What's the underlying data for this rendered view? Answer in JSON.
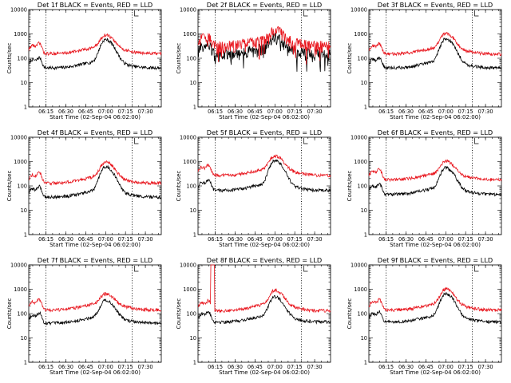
{
  "chart_data": [
    {
      "type": "line",
      "title": "Det 1f BLACK = Events, RED = LLD",
      "xlabel": "Start Time (02-Sep-04 06:02:00)",
      "ylabel": "Counts/sec",
      "yscale": "log",
      "ylim": [
        1,
        10000
      ],
      "x_ticks": [
        "06:15",
        "06:30",
        "06:45",
        "07:00",
        "07:15",
        "07:30"
      ],
      "y_ticks": [
        "1",
        "10",
        "100",
        "1000",
        "10000"
      ],
      "marker_lines": [
        "06:15",
        "07:20"
      ],
      "series": [
        {
          "color": "#000000",
          "profile": "normal",
          "base": 40,
          "peak": 550
        },
        {
          "color": "#e8141c",
          "profile": "normal",
          "base": 155,
          "peak": 760
        }
      ]
    },
    {
      "type": "line",
      "title": "Det 2f BLACK = Events, RED = LLD",
      "xlabel": "Start Time (02-Sep-04 06:02:00)",
      "ylabel": "Counts/sec",
      "yscale": "log",
      "ylim": [
        1,
        10000
      ],
      "x_ticks": [
        "06:15",
        "06:30",
        "06:45",
        "07:00",
        "07:15",
        "07:30"
      ],
      "y_ticks": [
        "1",
        "10",
        "100",
        "1000",
        "10000"
      ],
      "marker_lines": [
        "06:15",
        "07:20"
      ],
      "series": [
        {
          "color": "#000000",
          "profile": "noisy",
          "base": 150,
          "peak": 600
        },
        {
          "color": "#e8141c",
          "profile": "noisy",
          "base": 330,
          "peak": 1150
        }
      ]
    },
    {
      "type": "line",
      "title": "Det 3f BLACK = Events, RED = LLD",
      "xlabel": "Start Time (02-Sep-04 06:02:00)",
      "ylabel": "Counts/sec",
      "yscale": "log",
      "ylim": [
        1,
        10000
      ],
      "x_ticks": [
        "06:15",
        "06:30",
        "06:45",
        "07:00",
        "07:15",
        "07:30"
      ],
      "y_ticks": [
        "1",
        "10",
        "100",
        "1000",
        "10000"
      ],
      "marker_lines": [
        "06:15",
        "07:20"
      ],
      "series": [
        {
          "color": "#000000",
          "profile": "normal",
          "base": 40,
          "peak": 600
        },
        {
          "color": "#e8141c",
          "profile": "normal",
          "base": 150,
          "peak": 950
        }
      ]
    },
    {
      "type": "line",
      "title": "Det 4f BLACK = Events, RED = LLD",
      "xlabel": "Start Time (02-Sep-04 06:02:00)",
      "ylabel": "Counts/sec",
      "yscale": "log",
      "ylim": [
        1,
        10000
      ],
      "x_ticks": [
        "06:15",
        "06:30",
        "06:45",
        "07:00",
        "07:15",
        "07:30"
      ],
      "y_ticks": [
        "1",
        "10",
        "100",
        "1000",
        "10000"
      ],
      "marker_lines": [
        "06:15",
        "07:20"
      ],
      "series": [
        {
          "color": "#000000",
          "profile": "normal",
          "base": 35,
          "peak": 580
        },
        {
          "color": "#e8141c",
          "profile": "normal",
          "base": 130,
          "peak": 850
        }
      ]
    },
    {
      "type": "line",
      "title": "Det 5f BLACK = Events, RED = LLD",
      "xlabel": "Start Time (02-Sep-04 06:02:00)",
      "ylabel": "Counts/sec",
      "yscale": "log",
      "ylim": [
        1,
        10000
      ],
      "x_ticks": [
        "06:15",
        "06:30",
        "06:45",
        "07:00",
        "07:15",
        "07:30"
      ],
      "y_ticks": [
        "1",
        "10",
        "100",
        "1000",
        "10000"
      ],
      "marker_lines": [
        "06:15",
        "07:20"
      ],
      "series": [
        {
          "color": "#000000",
          "profile": "normal",
          "base": 65,
          "peak": 1050
        },
        {
          "color": "#e8141c",
          "profile": "normal",
          "base": 270,
          "peak": 1500
        }
      ]
    },
    {
      "type": "line",
      "title": "Det 6f BLACK = Events, RED = LLD",
      "xlabel": "Start Time (02-Sep-04 06:02:00)",
      "ylabel": "Counts/sec",
      "yscale": "log",
      "ylim": [
        1,
        10000
      ],
      "x_ticks": [
        "06:15",
        "06:30",
        "06:45",
        "07:00",
        "07:15",
        "07:30"
      ],
      "y_ticks": [
        "1",
        "10",
        "100",
        "1000",
        "10000"
      ],
      "marker_lines": [
        "06:15",
        "07:20"
      ],
      "series": [
        {
          "color": "#000000",
          "profile": "normal",
          "base": 45,
          "peak": 520
        },
        {
          "color": "#e8141c",
          "profile": "normal",
          "base": 180,
          "peak": 900
        }
      ]
    },
    {
      "type": "line",
      "title": "Det 7f BLACK = Events, RED = LLD",
      "xlabel": "Start Time (02-Sep-04 06:02:00)",
      "ylabel": "Counts/sec",
      "yscale": "log",
      "ylim": [
        1,
        10000
      ],
      "x_ticks": [
        "06:15",
        "06:30",
        "06:45",
        "07:00",
        "07:15",
        "07:30"
      ],
      "y_ticks": [
        "1",
        "10",
        "100",
        "1000",
        "10000"
      ],
      "marker_lines": [
        "06:15",
        "07:20"
      ],
      "series": [
        {
          "color": "#000000",
          "profile": "normal",
          "base": 40,
          "peak": 320
        },
        {
          "color": "#e8141c",
          "profile": "normal",
          "base": 140,
          "peak": 520
        }
      ]
    },
    {
      "type": "line",
      "title": "Det 8f BLACK = Events, RED = LLD",
      "xlabel": "Start Time (02-Sep-04 06:02:00)",
      "ylabel": "Counts/sec",
      "yscale": "log",
      "ylim": [
        1,
        10000
      ],
      "x_ticks": [
        "06:15",
        "06:30",
        "06:45",
        "07:00",
        "07:15",
        "07:30"
      ],
      "y_ticks": [
        "1",
        "10",
        "100",
        "1000",
        "10000"
      ],
      "marker_lines": [
        "06:15",
        "07:20"
      ],
      "series": [
        {
          "color": "#000000",
          "profile": "normal",
          "base": 45,
          "peak": 450
        },
        {
          "color": "#e8141c",
          "profile": "spike",
          "base": 130,
          "peak": 800
        }
      ]
    },
    {
      "type": "line",
      "title": "Det 9f BLACK = Events, RED = LLD",
      "xlabel": "Start Time (02-Sep-04 06:02:00)",
      "ylabel": "Counts/sec",
      "yscale": "log",
      "ylim": [
        1,
        10000
      ],
      "x_ticks": [
        "06:15",
        "06:30",
        "06:45",
        "07:00",
        "07:15",
        "07:30"
      ],
      "y_ticks": [
        "1",
        "10",
        "100",
        "1000",
        "10000"
      ],
      "marker_lines": [
        "06:15",
        "07:20"
      ],
      "series": [
        {
          "color": "#000000",
          "profile": "normal",
          "base": 45,
          "peak": 620
        },
        {
          "color": "#e8141c",
          "profile": "normal",
          "base": 140,
          "peak": 900
        }
      ]
    }
  ]
}
